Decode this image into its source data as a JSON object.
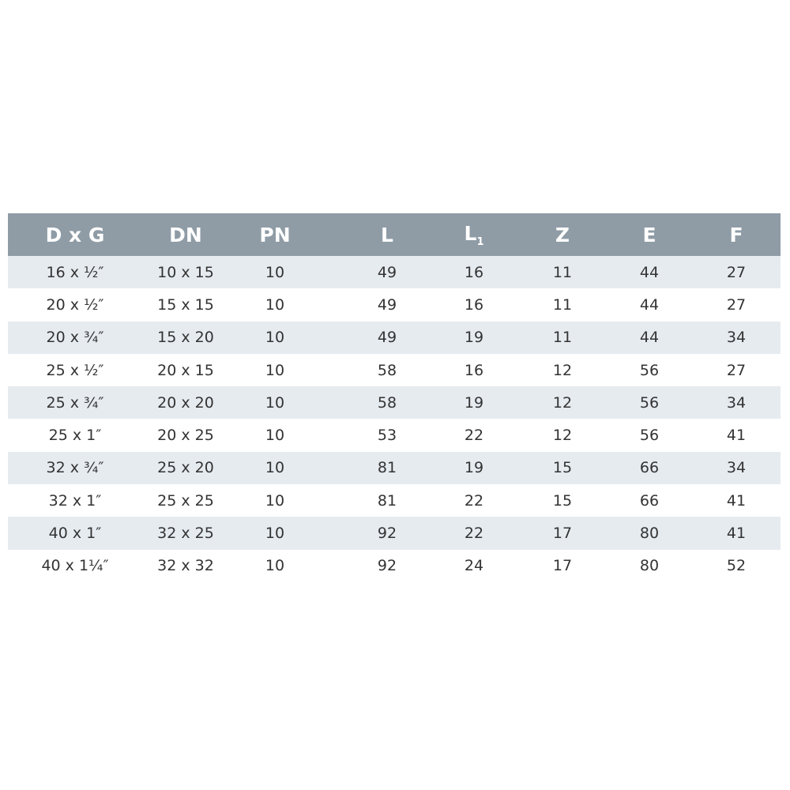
{
  "table": {
    "headers": [
      "D x G",
      "DN",
      "PN",
      "L",
      "L",
      "Z",
      "E",
      "F"
    ],
    "header_subscripts": [
      "",
      "",
      "",
      "",
      "1",
      "",
      "",
      ""
    ],
    "rows": [
      [
        "16 x ½″",
        "10 x 15",
        "10",
        "49",
        "16",
        "11",
        "44",
        "27"
      ],
      [
        "20 x ½″",
        "15 x 15",
        "10",
        "49",
        "16",
        "11",
        "44",
        "27"
      ],
      [
        "20 x ¾″",
        "15 x 20",
        "10",
        "49",
        "19",
        "11",
        "44",
        "34"
      ],
      [
        "25 x ½″",
        "20 x 15",
        "10",
        "58",
        "16",
        "12",
        "56",
        "27"
      ],
      [
        "25 x ¾″",
        "20 x 20",
        "10",
        "58",
        "19",
        "12",
        "56",
        "34"
      ],
      [
        "25 x 1″",
        "20 x 25",
        "10",
        "53",
        "22",
        "12",
        "56",
        "41"
      ],
      [
        "32 x ¾″",
        "25 x 20",
        "10",
        "81",
        "19",
        "15",
        "66",
        "34"
      ],
      [
        "32 x 1″",
        "25 x 25",
        "10",
        "81",
        "22",
        "15",
        "66",
        "41"
      ],
      [
        "40 x 1″",
        "32 x 25",
        "10",
        "92",
        "22",
        "17",
        "80",
        "41"
      ],
      [
        "40 x 1¼″",
        "32 x 32",
        "10",
        "92",
        "24",
        "17",
        "80",
        "52"
      ]
    ]
  },
  "colors": {
    "header_bg": "#8f9ca6",
    "shaded_row": "#e6ebf0",
    "text": "#333333"
  }
}
